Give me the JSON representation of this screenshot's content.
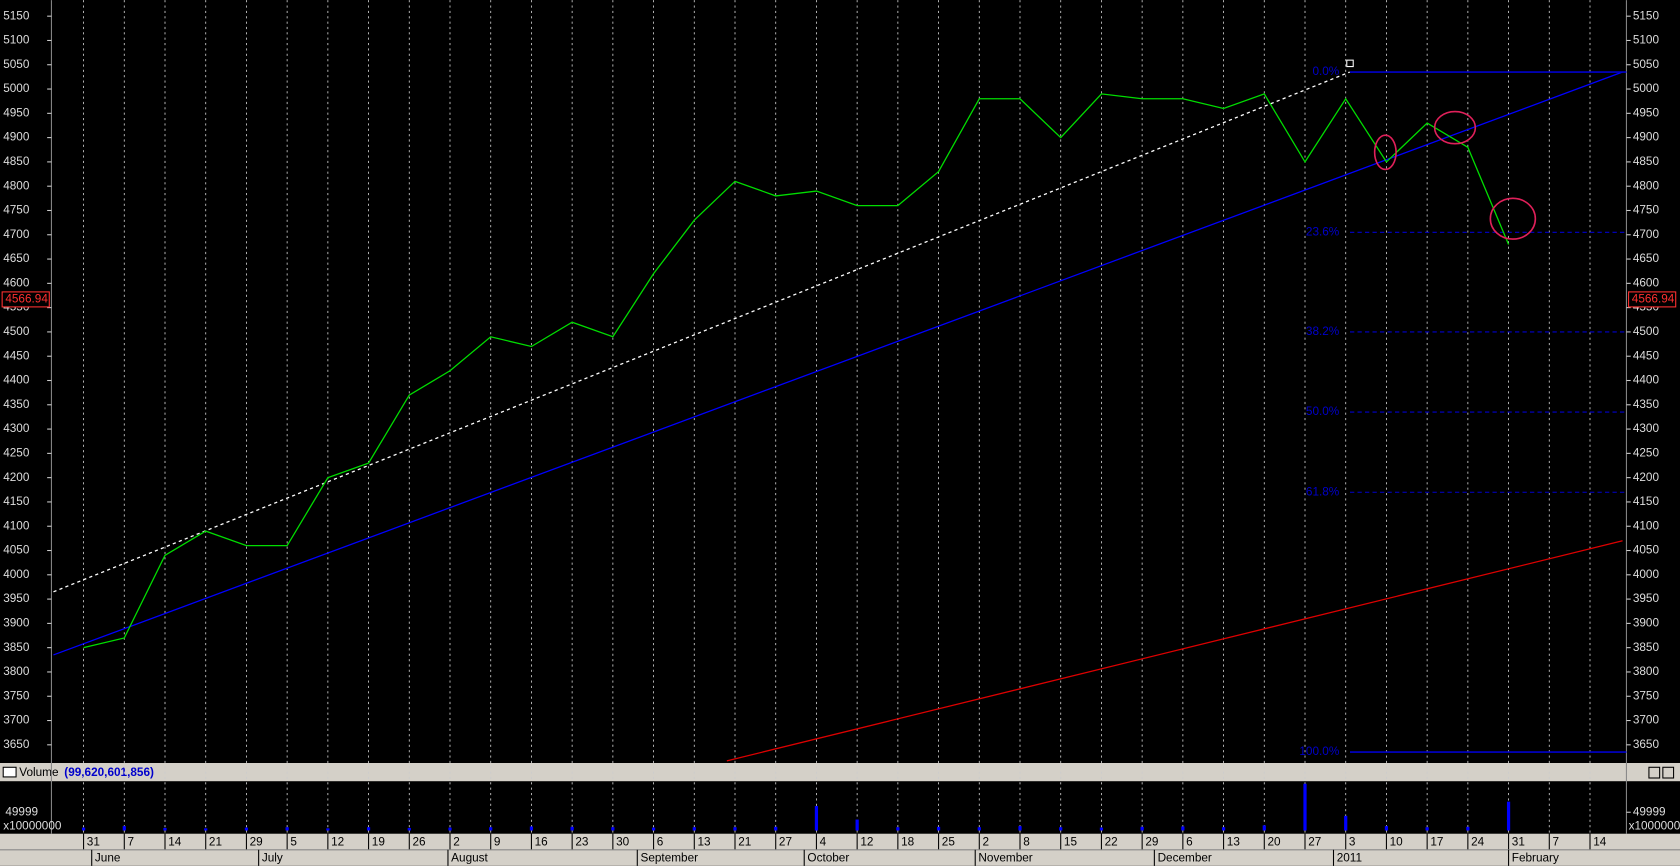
{
  "chart_data": {
    "type": "line",
    "categories": [
      "31",
      "7",
      "14",
      "21",
      "29",
      "5",
      "12",
      "19",
      "26",
      "2",
      "9",
      "16",
      "23",
      "30",
      "6",
      "13",
      "21",
      "27",
      "4",
      "12",
      "18",
      "25",
      "2",
      "8",
      "15",
      "22",
      "29",
      "6",
      "13",
      "20",
      "27",
      "3",
      "10",
      "17",
      "24",
      "31",
      "7",
      "14"
    ],
    "months": [
      "June",
      "July",
      "August",
      "September",
      "October",
      "November",
      "December",
      "2011",
      "February"
    ],
    "series": [
      {
        "name": "Price",
        "color": "#00dd00",
        "values": [
          3850,
          3870,
          4040,
          4090,
          4060,
          4060,
          4200,
          4230,
          4370,
          4420,
          4490,
          4470,
          4520,
          4490,
          4620,
          4730,
          4810,
          4780,
          4790,
          4760,
          4760,
          4830,
          4980,
          4980,
          4900,
          4990,
          4980,
          4980,
          4960,
          4990,
          4850,
          4980,
          4850,
          4930,
          4880,
          4680,
          null,
          null
        ]
      }
    ],
    "ylim": [
      3617,
      5183
    ],
    "yticks": [
      3650,
      3700,
      3750,
      3800,
      3850,
      3900,
      3950,
      4000,
      4050,
      4100,
      4150,
      4200,
      4250,
      4300,
      4350,
      4400,
      4450,
      4500,
      4550,
      4600,
      4650,
      4700,
      4750,
      4800,
      4850,
      4900,
      4950,
      5000,
      5050,
      5100,
      5150
    ],
    "last_price": {
      "value": 4566.94,
      "label": "4566.94"
    },
    "fib_levels": [
      {
        "label": "0.0%",
        "value": 5035
      },
      {
        "label": "23.6%",
        "value": 4705
      },
      {
        "label": "38.2%",
        "value": 4500
      },
      {
        "label": "50.0%",
        "value": 4335
      },
      {
        "label": "61.8%",
        "value": 4170
      },
      {
        "label": "100.0%",
        "value": 3635
      }
    ],
    "fib_color": "#0000cc",
    "trendlines": [
      {
        "color": "#0000ff",
        "from": 3835,
        "to": 5035
      },
      {
        "color": "#ffffff",
        "from": 3965,
        "to": 5035
      },
      {
        "color": "#dd0000",
        "from": 3617,
        "to": 4070
      }
    ],
    "volume": {
      "title": "Volume",
      "total_label": "(99,620,601,856)",
      "unit_label": "x10000000",
      "color": "#0000ff",
      "ylim": [
        0,
        132000
      ],
      "yticks": [
        49999
      ],
      "values": [
        8000,
        12000,
        7000,
        6000,
        8000,
        9000,
        6000,
        9000,
        7000,
        8000,
        9000,
        11000,
        10000,
        9000,
        8000,
        9000,
        9000,
        10000,
        67000,
        30000,
        9000,
        10000,
        9000,
        12000,
        9000,
        8000,
        10000,
        11000,
        9000,
        14000,
        128000,
        40000,
        12000,
        9000,
        10000,
        79000,
        null,
        null
      ]
    }
  }
}
